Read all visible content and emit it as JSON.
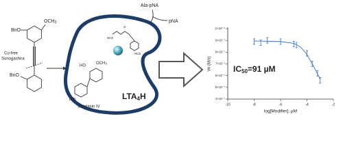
{
  "labels": {
    "bno_top": "BnO",
    "och3_top": {
      "main": "OCH",
      "sub": "3"
    },
    "sonogashira": [
      "Cu-free",
      "Sonogashira"
    ],
    "bno_bottom": "BnO",
    "ho_top": "HO",
    "och3_mid": {
      "main": "OCH",
      "sub": "3"
    },
    "ho_bottom": "HO",
    "batatasin": "batatasin IV",
    "enzyme": {
      "main": "LTA",
      "sub": "4",
      "rest": "H"
    },
    "substrate": "Ala-pNA",
    "product": "pNA",
    "nh2": "NH2",
    "oxo": "O",
    "no2": "NO2",
    "ic50": {
      "main": "IC",
      "sub": "50",
      "rest": "=91 µM"
    }
  },
  "chart_data": {
    "type": "scatter",
    "xlabel": "log[Modifier], µM",
    "ylabel": "Vo (M/s)",
    "xlim": [
      -10,
      -2
    ],
    "xticks": [
      -10,
      -8,
      -6,
      -4,
      -2
    ],
    "ylim": [
      4e-07,
      1e-06
    ],
    "yticks": [
      {
        "value": 4e-07,
        "label": "4×10⁻⁷"
      },
      {
        "value": 5e-07,
        "label": "5×10⁻⁷"
      },
      {
        "value": 6e-07,
        "label": "6×10⁻⁷"
      },
      {
        "value": 7e-07,
        "label": "7×10⁻⁷"
      },
      {
        "value": 8e-07,
        "label": "8×10⁻⁷"
      },
      {
        "value": 9e-07,
        "label": "9×10⁻⁷"
      },
      {
        "value": 1e-06,
        "label": "1×10⁻⁶"
      }
    ],
    "color": "#3a6fc4",
    "series": [
      {
        "x": [
          -8,
          -7.5,
          -7,
          -6,
          -5,
          -4.8,
          -4,
          -3.6,
          -3.2,
          -3
        ],
        "values": [
          8.9e-07,
          8.8e-07,
          9e-07,
          8.9e-07,
          8.7e-07,
          8.6e-07,
          7.9e-07,
          7e-07,
          6.2e-07,
          5.6e-07
        ]
      },
      {
        "x": [
          -8,
          -7,
          -6,
          -5,
          -4.5,
          -4,
          -3.5,
          -3
        ],
        "values": [
          8.95e-07,
          8.93e-07,
          8.9e-07,
          8.75e-07,
          8.45e-07,
          7.8e-07,
          6.8e-07,
          5.7e-07
        ]
      }
    ]
  }
}
